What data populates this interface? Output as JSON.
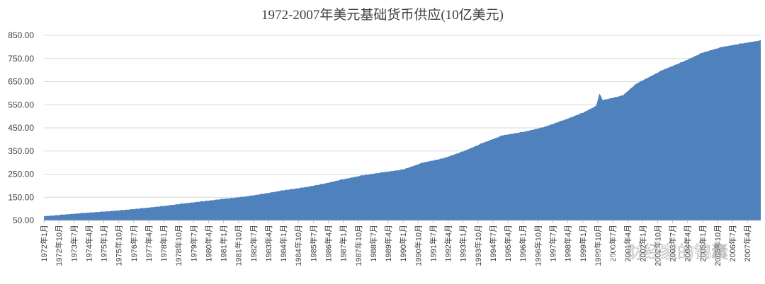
{
  "chart_data": {
    "type": "area",
    "title": "1972-2007年美元基础货币供应(10亿美元)",
    "xlabel": "",
    "ylabel": "",
    "ylim": [
      50,
      850
    ],
    "yticks": [
      "50.00",
      "150.00",
      "250.00",
      "350.00",
      "450.00",
      "550.00",
      "650.00",
      "750.00",
      "850.00"
    ],
    "grid": true,
    "legend": "none",
    "color": "#4f81bd",
    "x_start": "1972年1月",
    "x_end": "2007年12月",
    "x_tick_labels": [
      "1972年1月",
      "1972年10月",
      "1973年7月",
      "1974年4月",
      "1975年1月",
      "1975年10月",
      "1976年7月",
      "1977年4月",
      "1978年1月",
      "1978年10月",
      "1979年7月",
      "1980年4月",
      "1981年1月",
      "1981年10月",
      "1982年7月",
      "1983年4月",
      "1984年1月",
      "1984年10月",
      "1985年7月",
      "1986年4月",
      "1987年1月",
      "1987年10月",
      "1988年7月",
      "1989年4月",
      "1990年1月",
      "1990年10月",
      "1991年7月",
      "1992年4月",
      "1993年1月",
      "1993年10月",
      "1994年7月",
      "1995年4月",
      "1996年1月",
      "1996年10月",
      "1997年7月",
      "1998年4月",
      "1999年1月",
      "1999年10月",
      "2000年7月",
      "2001年4月",
      "2002年1月",
      "2002年10月",
      "2003年7月",
      "2004年4月",
      "2005年1月",
      "2005年10月",
      "2006年7月",
      "2007年4月"
    ],
    "series": [
      {
        "values_by_month_anchor": [
          [
            "1972年1月",
            68
          ],
          [
            "1973年1月",
            75
          ],
          [
            "1974年1月",
            82
          ],
          [
            "1975年1月",
            88
          ],
          [
            "1976年1月",
            95
          ],
          [
            "1977年1月",
            103
          ],
          [
            "1978年1月",
            112
          ],
          [
            "1979年1月",
            123
          ],
          [
            "1980年1月",
            133
          ],
          [
            "1981年1月",
            143
          ],
          [
            "1982年1月",
            152
          ],
          [
            "1983年1月",
            165
          ],
          [
            "1984年1月",
            180
          ],
          [
            "1985年1月",
            192
          ],
          [
            "1986年1月",
            208
          ],
          [
            "1987年1月",
            228
          ],
          [
            "1988年1月",
            245
          ],
          [
            "1989年1月",
            258
          ],
          [
            "1990年1月",
            270
          ],
          [
            "1991年1月",
            300
          ],
          [
            "1992年1月",
            318
          ],
          [
            "1993年1月",
            348
          ],
          [
            "1994年1月",
            385
          ],
          [
            "1995年1月",
            418
          ],
          [
            "1996年1月",
            432
          ],
          [
            "1997年1月",
            452
          ],
          [
            "1998年1月",
            482
          ],
          [
            "1999年1月",
            515
          ],
          [
            "1999年9月",
            545
          ],
          [
            "1999年11月",
            598
          ],
          [
            "2000年1月",
            570
          ],
          [
            "2001年1月",
            590
          ],
          [
            "2001年9月",
            640
          ],
          [
            "2002年1月",
            655
          ],
          [
            "2003年1月",
            700
          ],
          [
            "2004年1月",
            735
          ],
          [
            "2005年1月",
            775
          ],
          [
            "2006年1月",
            800
          ],
          [
            "2007年1月",
            815
          ],
          [
            "2007年12月",
            828
          ]
        ]
      }
    ]
  },
  "watermark": "财经家的锦囊"
}
